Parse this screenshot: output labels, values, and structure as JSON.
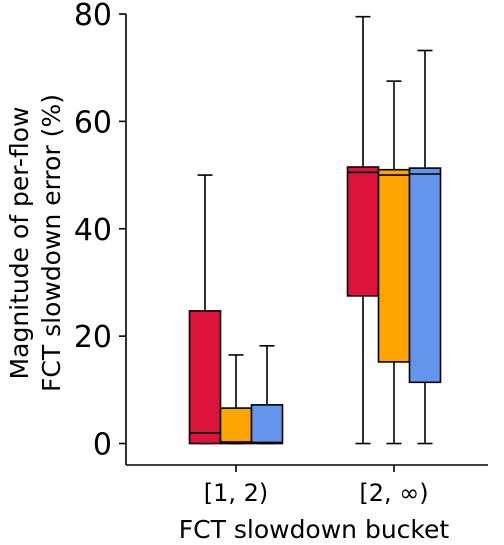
{
  "chart_data": {
    "type": "box",
    "title": "",
    "xlabel": "FCT slowdown bucket",
    "ylabel_lines": [
      "Magnitude of per-flow",
      "FCT slowdown error (%)"
    ],
    "ylim": [
      -4,
      80
    ],
    "yticks": [
      "0",
      "20",
      "40",
      "60",
      "80"
    ],
    "ytick_values": [
      0,
      20,
      40,
      60,
      80
    ],
    "categories": [
      "[1, 2)",
      "[2, ∞)"
    ],
    "legend": "none",
    "grid": false,
    "series": [
      {
        "color": "#dc143c",
        "boxes": [
          {
            "whislo": 0,
            "q1": 0,
            "median": 2.0,
            "q3": 24.7,
            "whishi": 50.0
          },
          {
            "whislo": 0,
            "q1": 27.5,
            "median": 50.5,
            "q3": 51.5,
            "whishi": 79.5
          }
        ]
      },
      {
        "color": "#ffa500",
        "boxes": [
          {
            "whislo": 0,
            "q1": 0,
            "median": 0.3,
            "q3": 6.6,
            "whishi": 16.5
          },
          {
            "whislo": 0,
            "q1": 15.2,
            "median": 50.0,
            "q3": 51.0,
            "whishi": 67.5
          }
        ]
      },
      {
        "color": "#6495ed",
        "boxes": [
          {
            "whislo": 0,
            "q1": 0,
            "median": 0.2,
            "q3": 7.2,
            "whishi": 18.2
          },
          {
            "whislo": 0,
            "q1": 11.4,
            "median": 50.2,
            "q3": 51.3,
            "whishi": 73.2
          }
        ]
      }
    ]
  }
}
